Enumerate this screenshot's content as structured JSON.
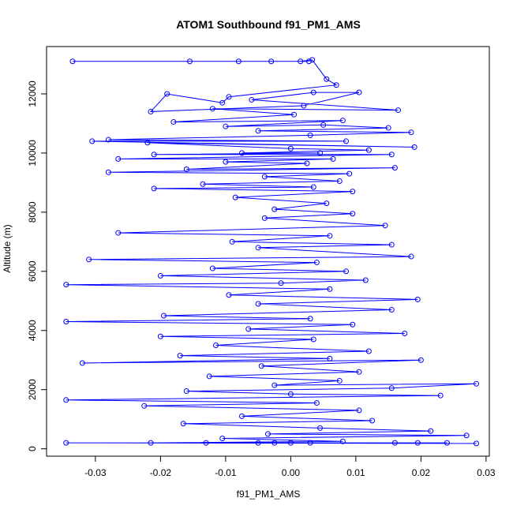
{
  "chart_data": {
    "type": "line",
    "title": "ATOM1 Southbound f91_PM1_AMS",
    "xlabel": "f91_PM1_AMS",
    "ylabel": "Altitude (m)",
    "xlim": [
      -0.0375,
      0.0305
    ],
    "ylim": [
      -250,
      13600
    ],
    "xticks": [
      {
        "value": -0.03,
        "label": "-0.03"
      },
      {
        "value": -0.02,
        "label": "-0.02"
      },
      {
        "value": -0.01,
        "label": "-0.01"
      },
      {
        "value": 0.0,
        "label": "0.00"
      },
      {
        "value": 0.01,
        "label": "0.01"
      },
      {
        "value": 0.02,
        "label": "0.02"
      },
      {
        "value": 0.03,
        "label": "0.03"
      }
    ],
    "yticks": [
      {
        "value": 0,
        "label": "0"
      },
      {
        "value": 2000,
        "label": "2000"
      },
      {
        "value": 4000,
        "label": "4000"
      },
      {
        "value": 6000,
        "label": "6000"
      },
      {
        "value": 8000,
        "label": "8000"
      },
      {
        "value": 10000,
        "label": "10000"
      },
      {
        "value": 12000,
        "label": "12000"
      }
    ],
    "grid": false,
    "series_color": "#0000ff",
    "series": [
      {
        "marker": "open-circle",
        "points": [
          [
            0.0028,
            13100
          ],
          [
            -0.0335,
            13100
          ],
          [
            -0.0155,
            13100
          ],
          [
            -0.008,
            13100
          ],
          [
            -0.003,
            13100
          ],
          [
            0.0015,
            13100
          ],
          [
            0.0033,
            13150
          ],
          [
            0.0055,
            12500
          ],
          [
            0.007,
            12300
          ],
          [
            -0.0095,
            11900
          ],
          [
            -0.0105,
            11700
          ],
          [
            -0.019,
            12000
          ],
          [
            -0.0215,
            11400
          ],
          [
            0.002,
            11600
          ],
          [
            0.0105,
            12050
          ],
          [
            0.0035,
            12050
          ],
          [
            -0.006,
            11800
          ],
          [
            0.0165,
            11450
          ],
          [
            -0.012,
            11500
          ],
          [
            0.0005,
            11300
          ],
          [
            -0.018,
            11050
          ],
          [
            0.008,
            11100
          ],
          [
            -0.01,
            10900
          ],
          [
            0.005,
            10950
          ],
          [
            0.015,
            10850
          ],
          [
            -0.005,
            10750
          ],
          [
            0.0185,
            10700
          ],
          [
            0.003,
            10600
          ],
          [
            -0.028,
            10450
          ],
          [
            0.0085,
            10400
          ],
          [
            -0.0305,
            10400
          ],
          [
            0.019,
            10200
          ],
          [
            -0.022,
            10350
          ],
          [
            0.0,
            10150
          ],
          [
            0.012,
            10100
          ],
          [
            -0.0075,
            10000
          ],
          [
            0.0045,
            10000
          ],
          [
            -0.021,
            9950
          ],
          [
            0.0155,
            9950
          ],
          [
            -0.0265,
            9800
          ],
          [
            0.0065,
            9800
          ],
          [
            -0.01,
            9700
          ],
          [
            0.0025,
            9650
          ],
          [
            -0.016,
            9450
          ],
          [
            0.016,
            9500
          ],
          [
            -0.028,
            9350
          ],
          [
            0.009,
            9300
          ],
          [
            -0.004,
            9200
          ],
          [
            0.0075,
            9050
          ],
          [
            -0.0135,
            8950
          ],
          [
            0.0035,
            8850
          ],
          [
            -0.021,
            8800
          ],
          [
            0.0095,
            8700
          ],
          [
            -0.0085,
            8500
          ],
          [
            0.0055,
            8300
          ],
          [
            -0.0025,
            8100
          ],
          [
            0.0095,
            7950
          ],
          [
            -0.004,
            7800
          ],
          [
            0.0145,
            7550
          ],
          [
            -0.0265,
            7300
          ],
          [
            0.006,
            7200
          ],
          [
            -0.009,
            7000
          ],
          [
            0.0155,
            6900
          ],
          [
            -0.005,
            6800
          ],
          [
            0.0185,
            6500
          ],
          [
            -0.031,
            6400
          ],
          [
            0.004,
            6300
          ],
          [
            -0.012,
            6100
          ],
          [
            0.0085,
            6000
          ],
          [
            -0.02,
            5850
          ],
          [
            0.0115,
            5700
          ],
          [
            -0.0015,
            5600
          ],
          [
            -0.0345,
            5550
          ],
          [
            0.006,
            5400
          ],
          [
            -0.0095,
            5200
          ],
          [
            0.0195,
            5050
          ],
          [
            -0.005,
            4900
          ],
          [
            0.0155,
            4700
          ],
          [
            -0.0195,
            4500
          ],
          [
            0.003,
            4400
          ],
          [
            -0.0345,
            4300
          ],
          [
            0.0095,
            4200
          ],
          [
            -0.0065,
            4050
          ],
          [
            0.0175,
            3900
          ],
          [
            -0.02,
            3800
          ],
          [
            0.0035,
            3700
          ],
          [
            -0.0115,
            3500
          ],
          [
            0.012,
            3300
          ],
          [
            -0.017,
            3150
          ],
          [
            0.006,
            3050
          ],
          [
            -0.032,
            2900
          ],
          [
            0.02,
            3000
          ],
          [
            -0.0045,
            2800
          ],
          [
            0.0105,
            2600
          ],
          [
            -0.0125,
            2450
          ],
          [
            0.0075,
            2300
          ],
          [
            -0.0025,
            2150
          ],
          [
            0.0285,
            2200
          ],
          [
            0.0155,
            2050
          ],
          [
            -0.016,
            1950
          ],
          [
            0.0,
            1850
          ],
          [
            0.023,
            1800
          ],
          [
            -0.0345,
            1650
          ],
          [
            0.004,
            1550
          ],
          [
            -0.0225,
            1450
          ],
          [
            0.0105,
            1300
          ],
          [
            -0.0075,
            1100
          ],
          [
            0.0125,
            950
          ],
          [
            -0.0165,
            850
          ],
          [
            0.0045,
            700
          ],
          [
            0.0215,
            600
          ],
          [
            -0.0035,
            500
          ],
          [
            0.027,
            450
          ],
          [
            -0.0105,
            350
          ],
          [
            0.008,
            250
          ],
          [
            -0.0215,
            200
          ],
          [
            0.0,
            200
          ],
          [
            0.0285,
            180
          ],
          [
            -0.0345,
            200
          ],
          [
            0.016,
            200
          ],
          [
            -0.005,
            200
          ],
          [
            0.0195,
            200
          ],
          [
            -0.013,
            200
          ],
          [
            0.003,
            200
          ],
          [
            0.024,
            200
          ],
          [
            -0.0025,
            200
          ]
        ]
      }
    ]
  }
}
